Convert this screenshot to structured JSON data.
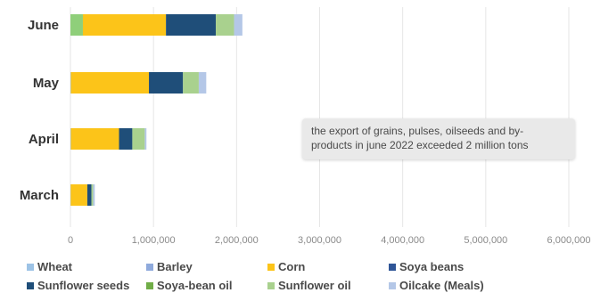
{
  "chart_data": {
    "type": "bar",
    "orientation": "horizontal",
    "stacked": true,
    "categories": [
      "June",
      "May",
      "April",
      "March"
    ],
    "series": [
      {
        "name": "Wheat",
        "color": "#9dc3e6",
        "values": [
          5000,
          5000,
          5000,
          3000
        ]
      },
      {
        "name": "Barley",
        "color": "#8faadc",
        "values": [
          0,
          0,
          0,
          0
        ]
      },
      {
        "name": "Corn",
        "color": "#fcc419",
        "values": [
          1000000,
          940000,
          580000,
          200000
        ]
      },
      {
        "name": "Soya beans",
        "color": "#2f5597",
        "values": [
          0,
          0,
          0,
          0
        ]
      },
      {
        "name": "Sunflower seeds",
        "color": "#1f4e79",
        "values": [
          600000,
          410000,
          160000,
          50000
        ]
      },
      {
        "name": "Soya-bean oil",
        "color": "#70ad47",
        "values": [
          0,
          0,
          0,
          0
        ]
      },
      {
        "name": "Sunflower oil",
        "color": "#a9d18e",
        "values": [
          220000,
          190000,
          150000,
          20000
        ]
      },
      {
        "name": "Oilcake (Meals)",
        "color": "#b4c7e7",
        "values": [
          100000,
          90000,
          20000,
          20000
        ]
      }
    ],
    "first_segment_overrides": {
      "June": {
        "color": "#8fcf7a",
        "value": 150000
      }
    },
    "xlim": [
      0,
      6000000
    ],
    "xticks": [
      0,
      1000000,
      2000000,
      3000000,
      4000000,
      5000000,
      6000000
    ],
    "xtick_labels": [
      "0",
      "1,000,000",
      "2,000,000",
      "3,000,000",
      "4,000,000",
      "5,000,000",
      "6,000,000"
    ],
    "grid": true,
    "legend_position": "bottom",
    "annotation": "the export of grains, pulses, oilseeds and by-products in june 2022 exceeded 2 million tons"
  },
  "annotation_lines": [
    "the export of grains, pulses, oilseeds and by-",
    "products in june 2022 exceeded 2 million tons"
  ],
  "legend": [
    {
      "label": "Wheat",
      "color": "#9dc3e6"
    },
    {
      "label": "Barley",
      "color": "#8faadc"
    },
    {
      "label": "Corn",
      "color": "#fcc419"
    },
    {
      "label": "Soya beans",
      "color": "#2f5597"
    },
    {
      "label": "Sunflower seeds",
      "color": "#1f4e79"
    },
    {
      "label": "Soya-bean oil",
      "color": "#70ad47"
    },
    {
      "label": "Sunflower oil",
      "color": "#a9d18e"
    },
    {
      "label": "Oilcake (Meals)",
      "color": "#b4c7e7"
    }
  ]
}
